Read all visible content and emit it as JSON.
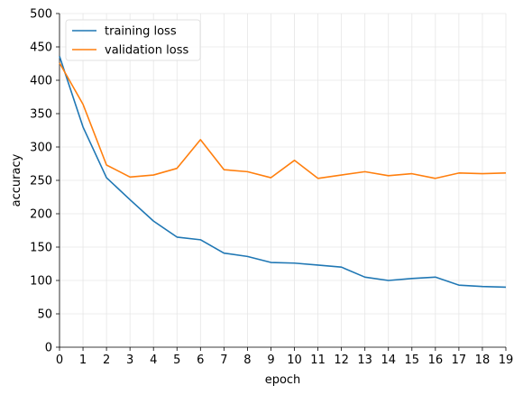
{
  "chart_data": {
    "type": "line",
    "title": "",
    "xlabel": "epoch",
    "ylabel": "accuracy",
    "xlim": [
      0,
      19
    ],
    "ylim": [
      0,
      500
    ],
    "x": [
      0,
      1,
      2,
      3,
      4,
      5,
      6,
      7,
      8,
      9,
      10,
      11,
      12,
      13,
      14,
      15,
      16,
      17,
      18,
      19
    ],
    "xticks": [
      0,
      1,
      2,
      3,
      4,
      5,
      6,
      7,
      8,
      9,
      10,
      11,
      12,
      13,
      14,
      15,
      16,
      17,
      18,
      19
    ],
    "yticks": [
      0,
      50,
      100,
      150,
      200,
      250,
      300,
      350,
      400,
      450,
      500
    ],
    "grid": true,
    "legend_position": "top-left",
    "series": [
      {
        "name": "training loss",
        "color": "#1f77b4",
        "values": [
          436,
          330,
          254,
          221,
          189,
          165,
          161,
          141,
          136,
          127,
          126,
          123,
          120,
          105,
          100,
          103,
          105,
          93,
          91,
          90
        ]
      },
      {
        "name": "validation loss",
        "color": "#ff7f0e",
        "values": [
          426,
          364,
          273,
          255,
          258,
          268,
          311,
          266,
          263,
          254,
          280,
          253,
          258,
          263,
          257,
          260,
          253,
          261,
          260,
          261
        ]
      }
    ]
  }
}
